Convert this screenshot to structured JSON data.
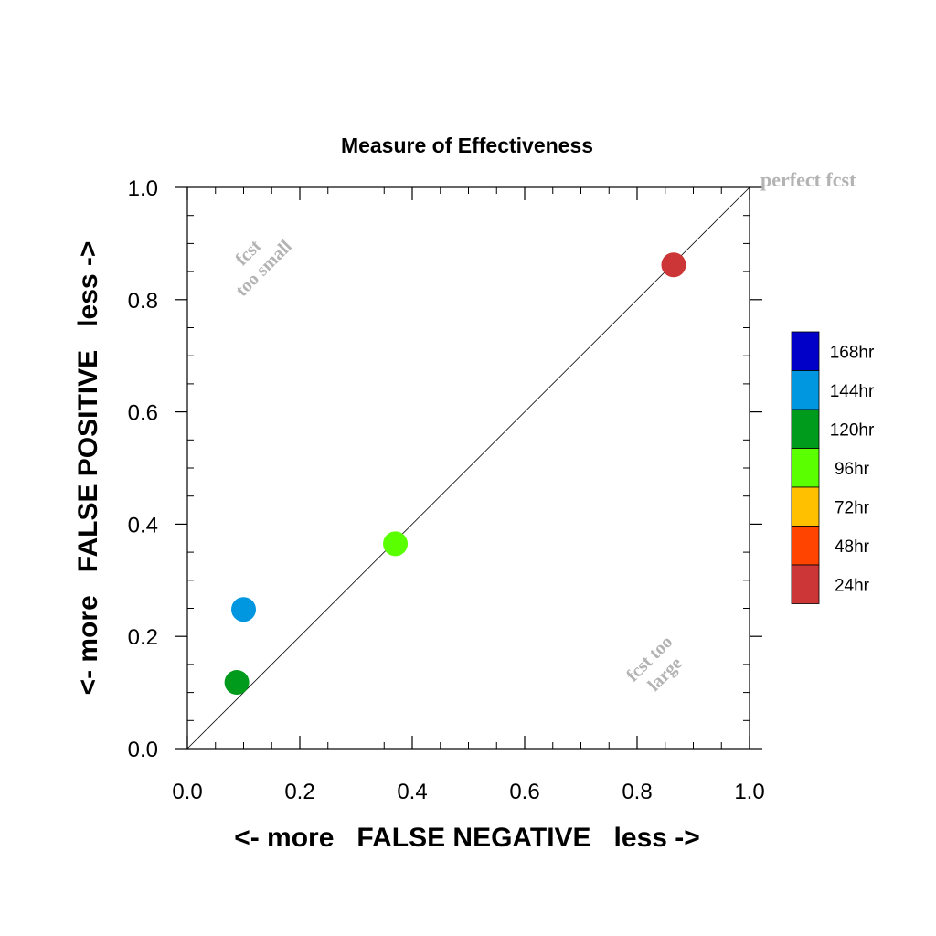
{
  "chart_data": {
    "type": "scatter",
    "title": "Measure of Effectiveness",
    "xlabel": "<- more   FALSE NEGATIVE   less ->",
    "ylabel": "<- more   FALSE POSITIVE   less ->",
    "xlim": [
      0.0,
      1.0
    ],
    "ylim": [
      0.0,
      1.0
    ],
    "xticks": [
      "0.0",
      "0.2",
      "0.4",
      "0.6",
      "0.8",
      "1.0"
    ],
    "yticks": [
      "0.0",
      "0.2",
      "0.4",
      "0.6",
      "0.8",
      "1.0"
    ],
    "reference_line": {
      "from": [
        0,
        0
      ],
      "to": [
        1,
        1
      ]
    },
    "annotations": [
      {
        "text": "perfect fcst",
        "color": "#b3b3b3"
      },
      {
        "text": "fcst",
        "color": "#b3b3b3"
      },
      {
        "text": "too small",
        "color": "#b3b3b3"
      },
      {
        "text": "fcst too",
        "color": "#b3b3b3"
      },
      {
        "text": "large",
        "color": "#b3b3b3"
      }
    ],
    "legend": {
      "placement": "right",
      "entries": [
        {
          "label": "168hr",
          "color": "#0000c8"
        },
        {
          "label": "144hr",
          "color": "#0096e0"
        },
        {
          "label": "120hr",
          "color": "#009a1c"
        },
        {
          "label": "96hr",
          "color": "#5aff00"
        },
        {
          "label": "72hr",
          "color": "#ffc000"
        },
        {
          "label": "48hr",
          "color": "#ff4400"
        },
        {
          "label": "24hr",
          "color": "#cc3636"
        }
      ]
    },
    "points": [
      {
        "label": "24hr",
        "x": 0.865,
        "y": 0.862,
        "color": "#cc3636"
      },
      {
        "label": "96hr",
        "x": 0.37,
        "y": 0.365,
        "color": "#5aff00"
      },
      {
        "label": "144hr",
        "x": 0.1,
        "y": 0.248,
        "color": "#0096e0"
      },
      {
        "label": "120hr",
        "x": 0.088,
        "y": 0.118,
        "color": "#009a1c"
      }
    ]
  }
}
